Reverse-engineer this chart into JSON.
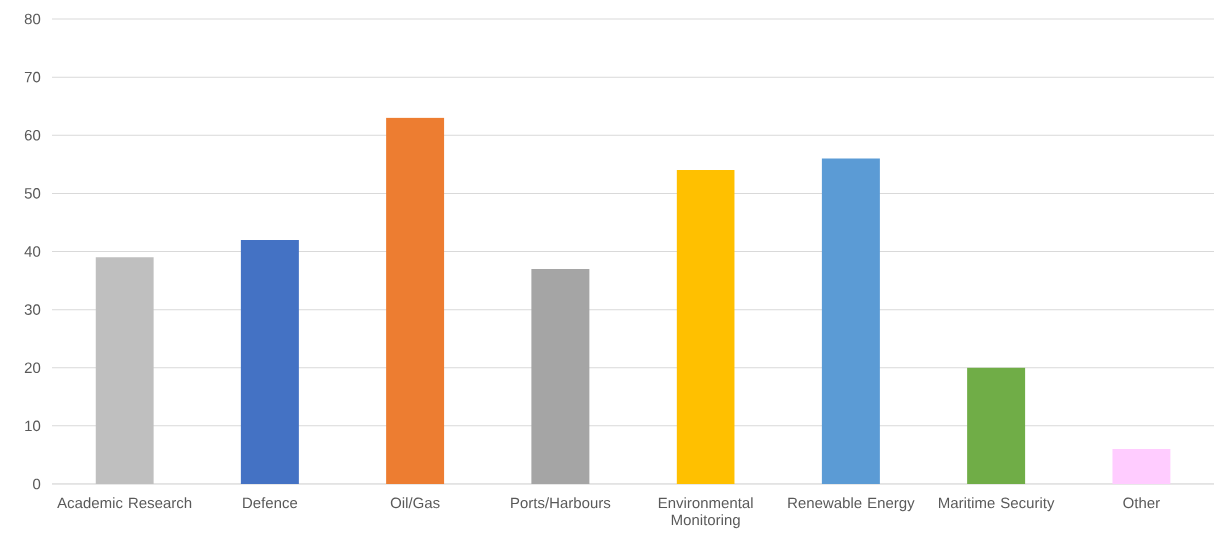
{
  "chart_data": {
    "type": "bar",
    "categories": [
      "Academic Research",
      "Defence",
      "Oil/Gas",
      "Ports/Harbours",
      "Environmental Monitoring",
      "Renewable Energy",
      "Maritime Security",
      "Other"
    ],
    "values": [
      39,
      42,
      63,
      37,
      54,
      56,
      20,
      6
    ],
    "colors": [
      "#bfbfbf",
      "#4472c4",
      "#ed7d31",
      "#a5a5a5",
      "#ffc000",
      "#5b9bd5",
      "#70ad47",
      "#ffccff"
    ],
    "ylim": [
      0,
      80
    ],
    "yticks": [
      0,
      10,
      20,
      30,
      40,
      50,
      60,
      70,
      80
    ],
    "grid": "y"
  }
}
